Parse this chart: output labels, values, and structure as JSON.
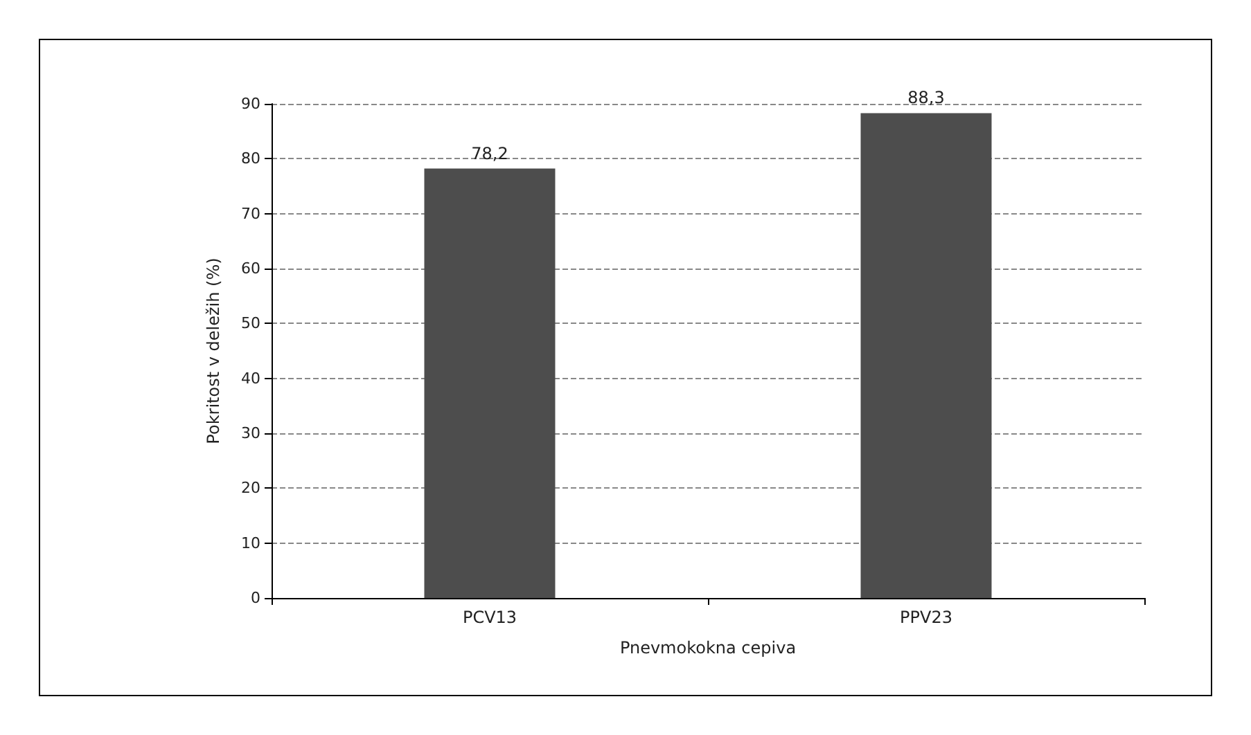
{
  "chart_data": {
    "type": "bar",
    "xlabel": "Pnevmokokna cepiva",
    "ylabel": "Pokritost v deležih (%)",
    "categories": [
      "PCV13",
      "PPV23"
    ],
    "values": [
      78.2,
      88.3
    ],
    "color": "#4d4d4d",
    "value_labels": [
      "78,2",
      "88,3"
    ],
    "ylim": [
      0,
      90
    ],
    "yticks": [
      0,
      10,
      20,
      30,
      40,
      50,
      60,
      70,
      80,
      90
    ],
    "grid": "y"
  }
}
